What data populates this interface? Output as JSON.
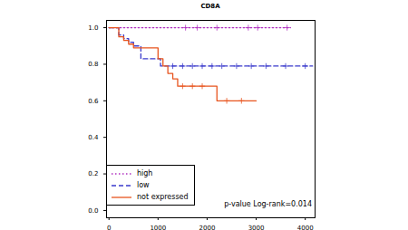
{
  "chart_data": {
    "type": "line",
    "title": "CD8A",
    "annotation": "p-value Log-rank=0.014",
    "legend": "bottom-left",
    "xlim": [
      -50,
      4200
    ],
    "ylim": [
      -0.04,
      1.04
    ],
    "xticks": [
      0,
      1000,
      2000,
      3000,
      4000
    ],
    "yticks": [
      {
        "value": 0,
        "label": "0.0"
      },
      0.2,
      0.4,
      0.6,
      0.8,
      {
        "value": 1,
        "label": "1.0"
      }
    ],
    "series": [
      {
        "name": "high",
        "color": "#b030c0",
        "line_style": "dotted",
        "x": [
          0,
          3700
        ],
        "values": [
          1,
          1
        ],
        "censored": [
          1560,
          1800,
          2200,
          2840,
          3030,
          3630
        ]
      },
      {
        "name": "low",
        "color": "#3a3acc",
        "line_style": "dashed",
        "x": [
          0,
          200,
          300,
          400,
          500,
          650,
          1050,
          4150
        ],
        "values": [
          1,
          0.96,
          0.94,
          0.92,
          0.9,
          0.83,
          0.79,
          0.79
        ],
        "censored": [
          1300,
          1500,
          1700,
          1900,
          2100,
          2300,
          2600,
          2900,
          3200,
          3600,
          4000
        ]
      },
      {
        "name": "not expressed",
        "color": "#e8541e",
        "line_style": "solid",
        "x": [
          0,
          200,
          300,
          400,
          500,
          1000,
          1100,
          1200,
          1300,
          1400,
          2200,
          3000
        ],
        "values": [
          1,
          0.95,
          0.93,
          0.91,
          0.89,
          0.83,
          0.79,
          0.75,
          0.72,
          0.68,
          0.6,
          0.6
        ],
        "censored": [
          1500,
          1700,
          1900,
          2400,
          2700
        ]
      }
    ]
  }
}
